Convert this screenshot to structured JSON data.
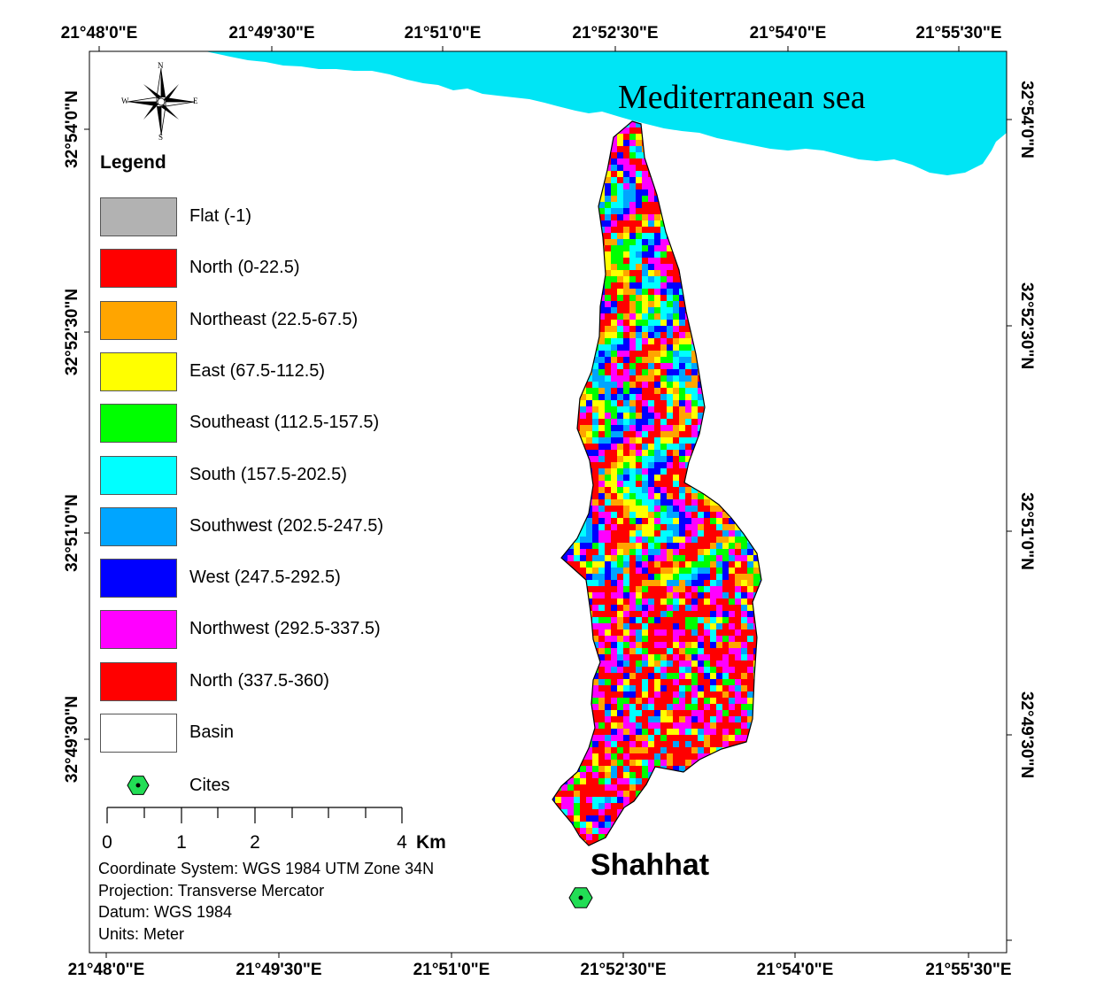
{
  "map": {
    "sea_label": "Mediterranean sea",
    "city_label": "Shahhat",
    "sea_color": "#00E5F5",
    "basin_outline_color": "#000000",
    "city_marker_color": "#22DD55"
  },
  "graticule": {
    "top_labels": [
      "21°48'0\"E",
      "21°49'30\"E",
      "21°51'0\"E",
      "21°52'30\"E",
      "21°54'0\"E",
      "21°55'30\"E"
    ],
    "bottom_labels": [
      "21°48'0\"E",
      "21°49'30\"E",
      "21°51'0\"E",
      "21°52'30\"E",
      "21°54'0\"E",
      "21°55'30\"E"
    ],
    "left_labels": [
      "32°54'0\"N",
      "32°52'30\"N",
      "32°51'0\"N",
      "32°49'30\"N"
    ],
    "right_labels": [
      "32°54'0\"N",
      "32°52'30\"N",
      "32°51'0\"N",
      "32°49'30\"N"
    ]
  },
  "north_arrow": {
    "n": "N",
    "s": "S",
    "e": "E",
    "w": "W"
  },
  "legend": {
    "title": "Legend",
    "items": [
      {
        "label": "Flat (-1)",
        "color": "#B2B2B2"
      },
      {
        "label": "North (0-22.5)",
        "color": "#FF0000"
      },
      {
        "label": "Northeast (22.5-67.5)",
        "color": "#FFA500"
      },
      {
        "label": "East (67.5-112.5)",
        "color": "#FFFF00"
      },
      {
        "label": "Southeast (112.5-157.5)",
        "color": "#00FF00"
      },
      {
        "label": "South (157.5-202.5)",
        "color": "#00FFFF"
      },
      {
        "label": "Southwest (202.5-247.5)",
        "color": "#00A5FF"
      },
      {
        "label": "West (247.5-292.5)",
        "color": "#0000FF"
      },
      {
        "label": "Northwest (292.5-337.5)",
        "color": "#FF00FF"
      },
      {
        "label": "North (337.5-360)",
        "color": "#FF0000"
      },
      {
        "label": "Basin",
        "color": "#FFFFFF"
      }
    ],
    "cities_label": "Cites"
  },
  "scale_bar": {
    "labels": [
      "0",
      "1",
      "2",
      "4"
    ],
    "unit": "Km"
  },
  "info": {
    "lines": [
      "Coordinate System: WGS 1984 UTM Zone 34N",
      "Projection: Transverse Mercator",
      "Datum: WGS 1984",
      "Units: Meter"
    ]
  }
}
